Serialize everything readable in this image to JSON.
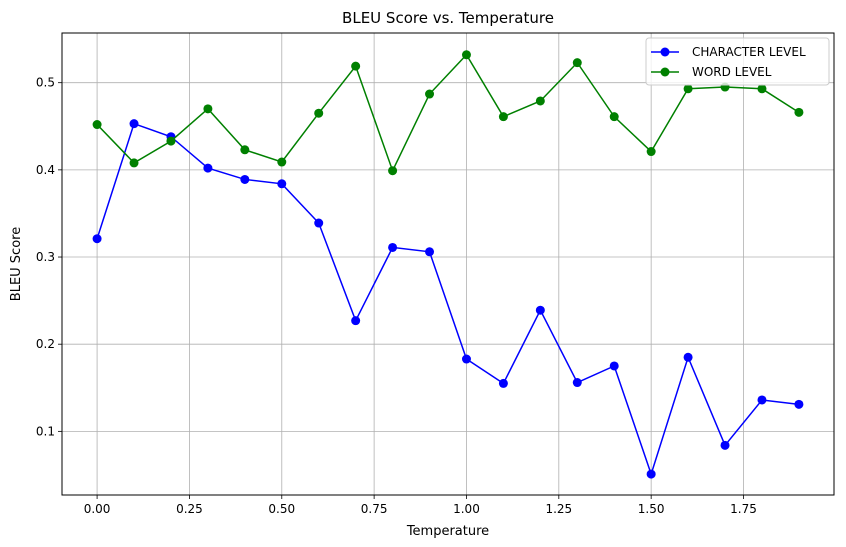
{
  "chart_data": {
    "type": "line",
    "title": "BLEU Score vs. Temperature",
    "xlabel": "Temperature",
    "ylabel": "BLEU Score",
    "xlim": [
      -0.095,
      1.995
    ],
    "ylim": [
      0.027,
      0.557
    ],
    "xticks": [
      0.0,
      0.25,
      0.5,
      0.75,
      1.0,
      1.25,
      1.5,
      1.75
    ],
    "xtick_labels": [
      "0.00",
      "0.25",
      "0.50",
      "0.75",
      "1.00",
      "1.25",
      "1.50",
      "1.75"
    ],
    "yticks": [
      0.1,
      0.2,
      0.3,
      0.4,
      0.5
    ],
    "ytick_labels": [
      "0.1",
      "0.2",
      "0.3",
      "0.4",
      "0.5"
    ],
    "grid": true,
    "legend_position": "top-right",
    "x": [
      0.0,
      0.1,
      0.2,
      0.3,
      0.4,
      0.5,
      0.6,
      0.7,
      0.8,
      0.9,
      1.0,
      1.1,
      1.2,
      1.3,
      1.4,
      1.5,
      1.6,
      1.7,
      1.8,
      1.9
    ],
    "series": [
      {
        "name": "CHARACTER LEVEL",
        "color": "#0000ff",
        "values": [
          0.321,
          0.453,
          0.438,
          0.402,
          0.389,
          0.384,
          0.339,
          0.227,
          0.311,
          0.306,
          0.183,
          0.155,
          0.239,
          0.156,
          0.175,
          0.051,
          0.185,
          0.084,
          0.136,
          0.131
        ]
      },
      {
        "name": "WORD LEVEL",
        "color": "#008000",
        "values": [
          0.452,
          0.408,
          0.433,
          0.47,
          0.423,
          0.409,
          0.465,
          0.519,
          0.399,
          0.487,
          0.532,
          0.461,
          0.479,
          0.523,
          0.461,
          0.421,
          0.493,
          0.495,
          0.493,
          0.466
        ]
      }
    ]
  }
}
